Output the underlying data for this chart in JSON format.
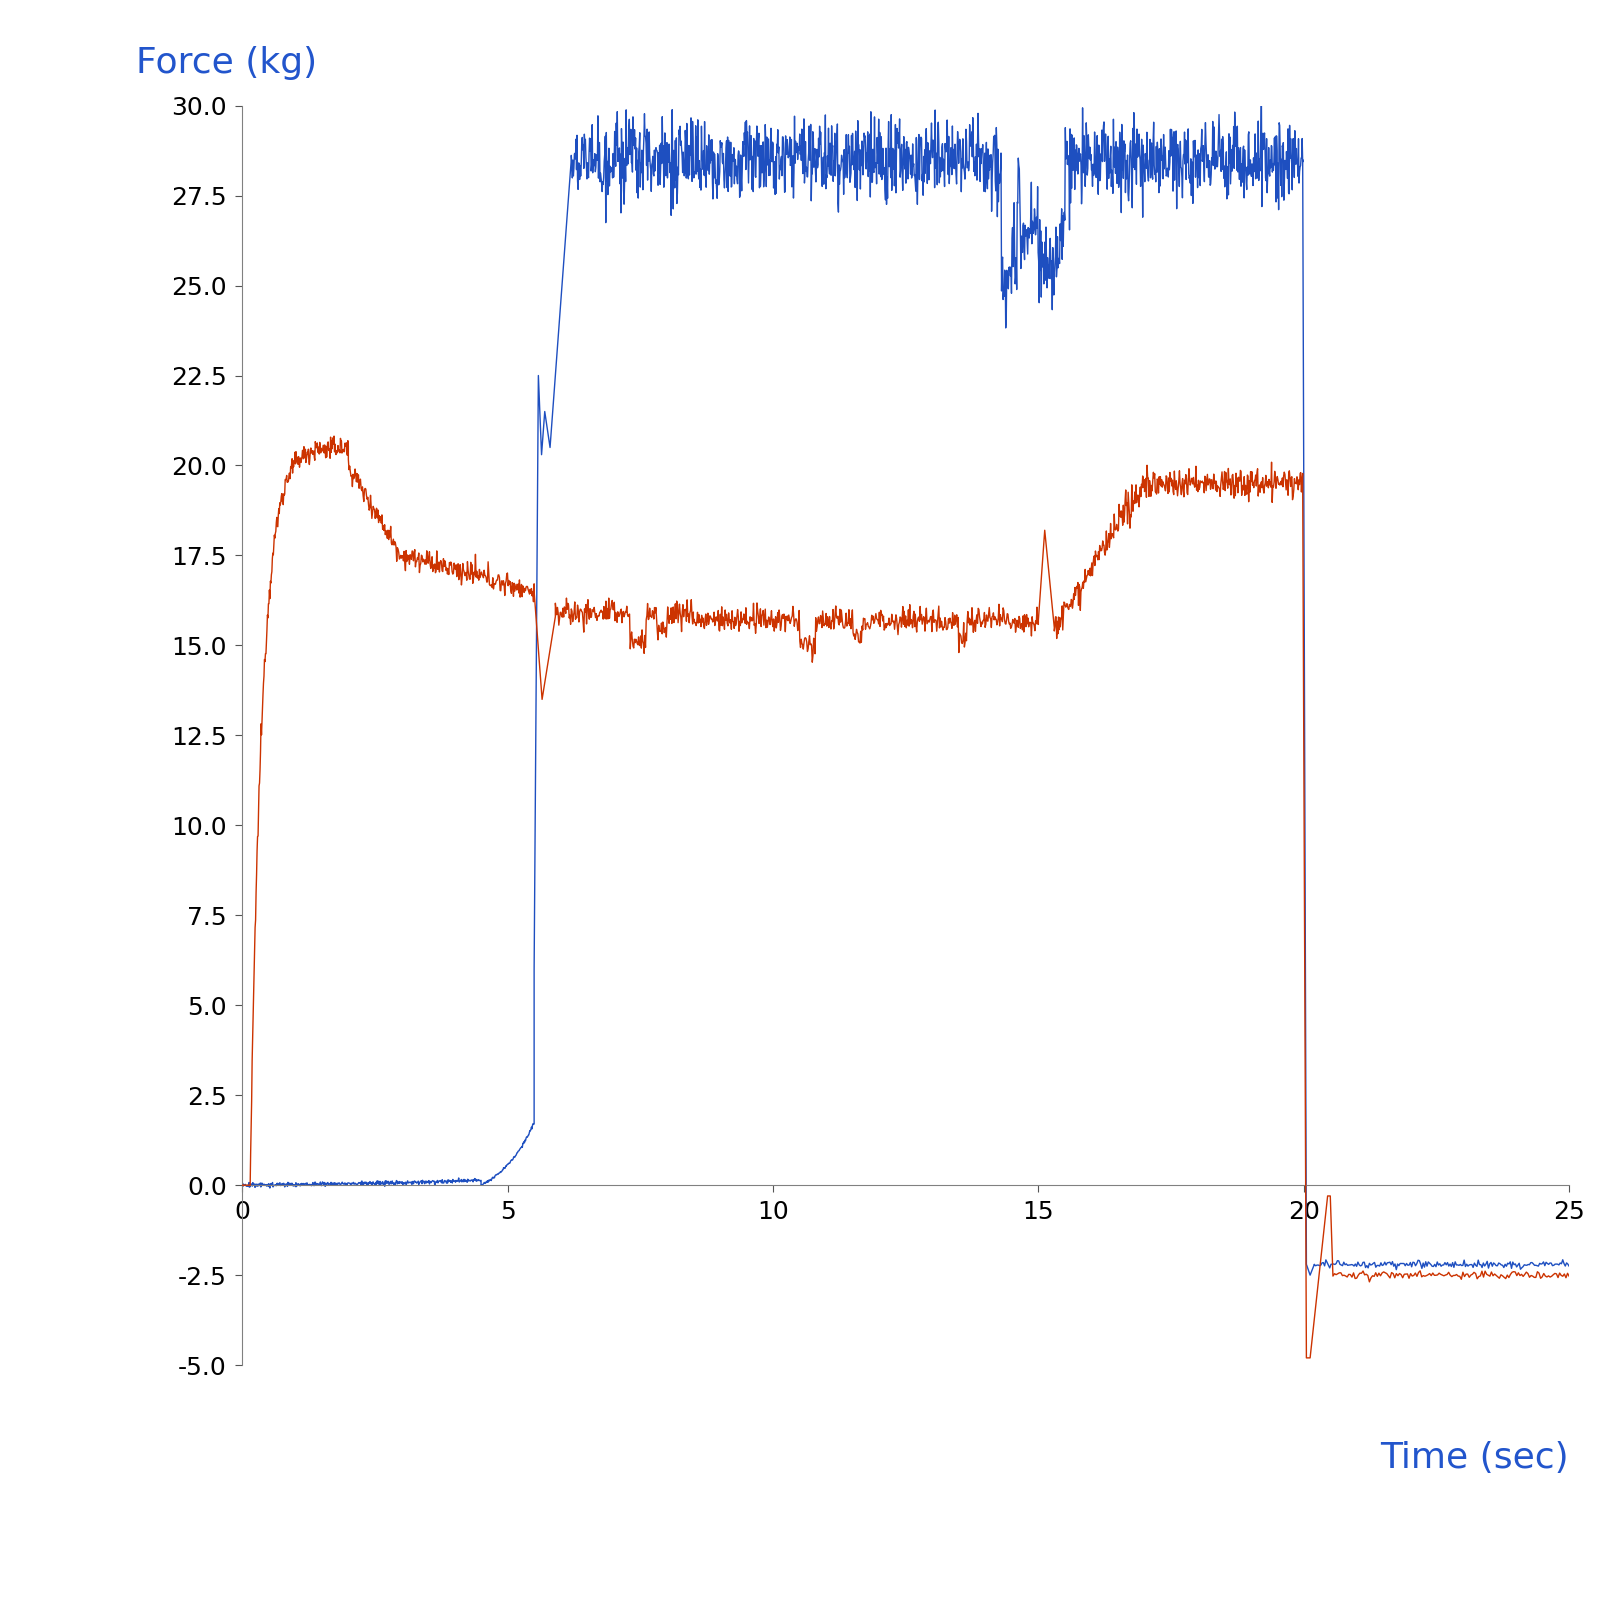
{
  "ylabel": "Force (kg)",
  "xlabel": "Time (sec)",
  "ylabel_color": "#2255CC",
  "xlabel_color": "#2255CC",
  "blue_color": "#1E4FC0",
  "red_color": "#CC3300",
  "ylim": [
    -5.0,
    30.0
  ],
  "xlim": [
    0,
    25
  ],
  "yticks": [
    -5.0,
    -2.5,
    0.0,
    2.5,
    5.0,
    7.5,
    10.0,
    12.5,
    15.0,
    17.5,
    20.0,
    22.5,
    25.0,
    27.5,
    30.0
  ],
  "xticks": [
    0,
    5,
    10,
    15,
    20,
    25
  ],
  "label_fontsize": 26,
  "tick_fontsize": 18,
  "linewidth": 1.0,
  "figsize": [
    16,
    16
  ],
  "dpi": 100
}
